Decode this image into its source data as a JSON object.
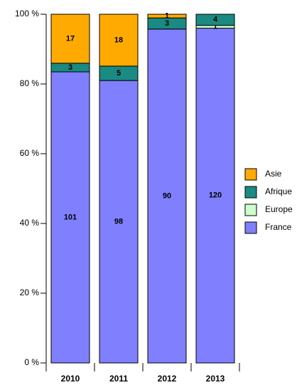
{
  "chart_data": {
    "type": "bar",
    "stacking": "percent",
    "categories": [
      "2010",
      "2011",
      "2012",
      "2013"
    ],
    "series": [
      {
        "name": "France",
        "color": "#8080ff",
        "values": [
          101,
          98,
          90,
          120
        ]
      },
      {
        "name": "Europe",
        "color": "#ccffcc",
        "values": [
          null,
          null,
          null,
          1
        ]
      },
      {
        "name": "Afrique",
        "color": "#1a8a82",
        "values": [
          3,
          5,
          3,
          4
        ]
      },
      {
        "name": "Asie",
        "color": "#ffaa00",
        "values": [
          17,
          18,
          1,
          null
        ]
      }
    ],
    "ylim": [
      0,
      100
    ],
    "yticks": [
      {
        "value": 0,
        "label": "0 %"
      },
      {
        "value": 20,
        "label": "20 %"
      },
      {
        "value": 40,
        "label": "40 %"
      },
      {
        "value": 60,
        "label": "60 %"
      },
      {
        "value": 80,
        "label": "80 %"
      },
      {
        "value": 100,
        "label": "100 %"
      }
    ],
    "legend": "right"
  }
}
